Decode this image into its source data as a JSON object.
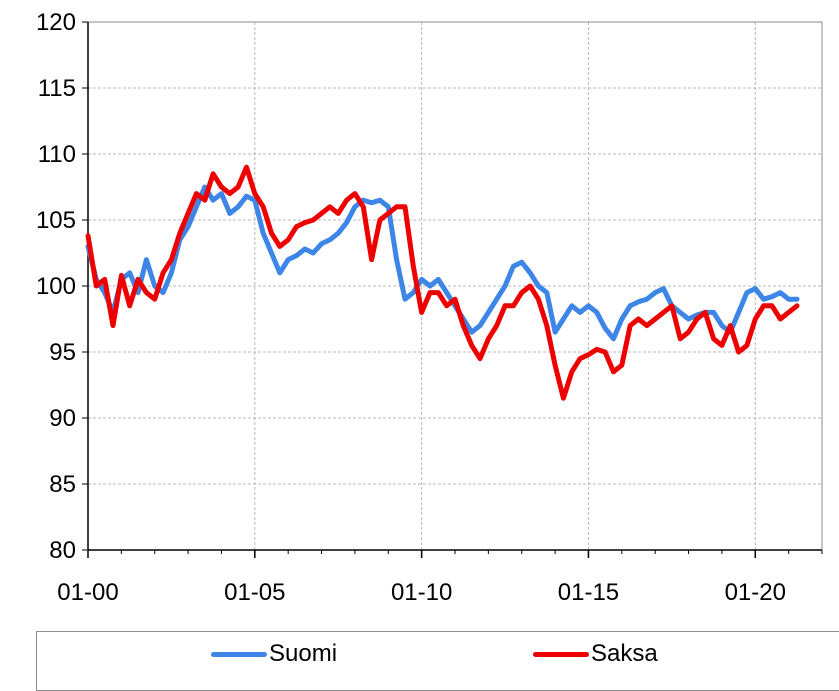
{
  "chart_data": {
    "type": "line",
    "title": "",
    "xlabel": "",
    "ylabel": "",
    "ylim": [
      80,
      120
    ],
    "y_ticks": [
      "80",
      "85",
      "90",
      "95",
      "100",
      "105",
      "110",
      "115",
      "120"
    ],
    "x_ticks": [
      "01-00",
      "01-05",
      "01-10",
      "01-15",
      "01-20"
    ],
    "xlim": [
      2000.0,
      2022.0
    ],
    "grid": true,
    "legend_position": "bottom",
    "series": [
      {
        "name": "Suomi",
        "color": "#3d86e8",
        "x": [
          2000.0,
          2000.25,
          2000.5,
          2000.75,
          2001.0,
          2001.25,
          2001.5,
          2001.75,
          2002.0,
          2002.25,
          2002.5,
          2002.75,
          2003.0,
          2003.25,
          2003.5,
          2003.75,
          2004.0,
          2004.25,
          2004.5,
          2004.75,
          2005.0,
          2005.25,
          2005.5,
          2005.75,
          2006.0,
          2006.25,
          2006.5,
          2006.75,
          2007.0,
          2007.25,
          2007.5,
          2007.75,
          2008.0,
          2008.25,
          2008.5,
          2008.75,
          2009.0,
          2009.25,
          2009.5,
          2009.75,
          2010.0,
          2010.25,
          2010.5,
          2010.75,
          2011.0,
          2011.25,
          2011.5,
          2011.75,
          2012.0,
          2012.25,
          2012.5,
          2012.75,
          2013.0,
          2013.25,
          2013.5,
          2013.75,
          2014.0,
          2014.25,
          2014.5,
          2014.75,
          2015.0,
          2015.25,
          2015.5,
          2015.75,
          2016.0,
          2016.25,
          2016.5,
          2016.75,
          2017.0,
          2017.25,
          2017.5,
          2017.75,
          2018.0,
          2018.25,
          2018.5,
          2018.75,
          2019.0,
          2019.25,
          2019.5,
          2019.75,
          2020.0,
          2020.25,
          2020.5,
          2020.75,
          2021.0,
          2021.25
        ],
        "values": [
          103.0,
          100.5,
          99.5,
          98.0,
          100.5,
          101.0,
          99.5,
          102.0,
          100.0,
          99.5,
          101.0,
          103.5,
          104.5,
          106.0,
          107.5,
          106.5,
          107.0,
          105.5,
          106.0,
          106.8,
          106.5,
          104.0,
          102.5,
          101.0,
          102.0,
          102.3,
          102.8,
          102.5,
          103.2,
          103.5,
          104.0,
          104.8,
          106.0,
          106.5,
          106.3,
          106.5,
          106.0,
          102.0,
          99.0,
          99.5,
          100.5,
          100.0,
          100.5,
          99.5,
          98.5,
          97.5,
          96.5,
          97.0,
          98.0,
          99.0,
          100.0,
          101.5,
          101.8,
          101.0,
          100.0,
          99.5,
          96.5,
          97.5,
          98.5,
          98.0,
          98.5,
          98.0,
          96.8,
          96.0,
          97.5,
          98.5,
          98.8,
          99.0,
          99.5,
          99.8,
          98.5,
          98.0,
          97.5,
          97.8,
          98.0,
          98.0,
          97.0,
          96.5,
          98.0,
          99.5,
          99.8,
          99.0,
          99.2,
          99.5,
          99.0,
          99.0
        ]
      },
      {
        "name": "Saksa",
        "color": "#ee0000",
        "x": [
          2000.0,
          2000.25,
          2000.5,
          2000.75,
          2001.0,
          2001.25,
          2001.5,
          2001.75,
          2002.0,
          2002.25,
          2002.5,
          2002.75,
          2003.0,
          2003.25,
          2003.5,
          2003.75,
          2004.0,
          2004.25,
          2004.5,
          2004.75,
          2005.0,
          2005.25,
          2005.5,
          2005.75,
          2006.0,
          2006.25,
          2006.5,
          2006.75,
          2007.0,
          2007.25,
          2007.5,
          2007.75,
          2008.0,
          2008.25,
          2008.5,
          2008.75,
          2009.0,
          2009.25,
          2009.5,
          2009.75,
          2010.0,
          2010.25,
          2010.5,
          2010.75,
          2011.0,
          2011.25,
          2011.5,
          2011.75,
          2012.0,
          2012.25,
          2012.5,
          2012.75,
          2013.0,
          2013.25,
          2013.5,
          2013.75,
          2014.0,
          2014.25,
          2014.5,
          2014.75,
          2015.0,
          2015.25,
          2015.5,
          2015.75,
          2016.0,
          2016.25,
          2016.5,
          2016.75,
          2017.0,
          2017.25,
          2017.5,
          2017.75,
          2018.0,
          2018.25,
          2018.5,
          2018.75,
          2019.0,
          2019.25,
          2019.5,
          2019.75,
          2020.0,
          2020.25,
          2020.5,
          2020.75,
          2021.0,
          2021.25
        ],
        "values": [
          103.8,
          100.0,
          100.5,
          97.0,
          100.8,
          98.5,
          100.5,
          99.5,
          99.0,
          101.0,
          102.0,
          104.0,
          105.5,
          107.0,
          106.5,
          108.5,
          107.5,
          107.0,
          107.5,
          109.0,
          107.0,
          106.0,
          104.0,
          103.0,
          103.5,
          104.5,
          104.8,
          105.0,
          105.5,
          106.0,
          105.5,
          106.5,
          107.0,
          106.0,
          102.0,
          105.0,
          105.5,
          106.0,
          106.0,
          101.5,
          98.0,
          99.5,
          99.5,
          98.5,
          99.0,
          97.0,
          95.5,
          94.5,
          96.0,
          97.0,
          98.5,
          98.5,
          99.5,
          100.0,
          99.0,
          97.0,
          94.0,
          91.5,
          93.5,
          94.5,
          94.8,
          95.2,
          95.0,
          93.5,
          94.0,
          97.0,
          97.5,
          97.0,
          97.5,
          98.0,
          98.5,
          96.0,
          96.5,
          97.5,
          98.0,
          96.0,
          95.5,
          97.0,
          95.0,
          95.5,
          97.5,
          98.5,
          98.5,
          97.5,
          98.0,
          98.5
        ]
      }
    ]
  },
  "legend": {
    "items": [
      {
        "label": "Suomi",
        "color": "#3d86e8"
      },
      {
        "label": "Saksa",
        "color": "#ee0000"
      }
    ]
  }
}
